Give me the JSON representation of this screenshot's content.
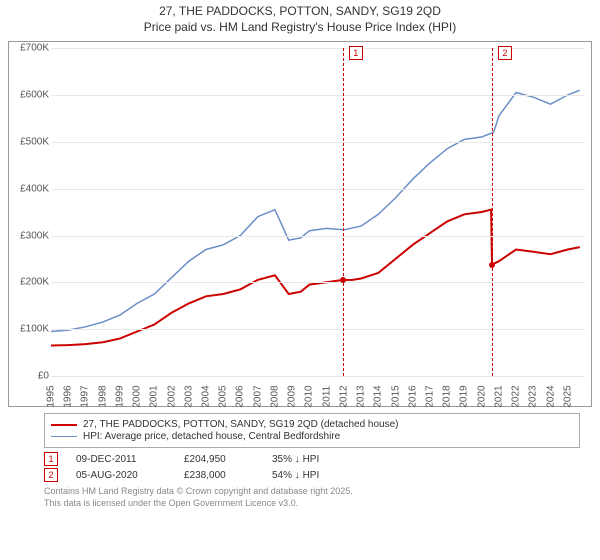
{
  "title": {
    "line1": "27, THE PADDOCKS, POTTON, SANDY, SG19 2QD",
    "line2": "Price paid vs. HM Land Registry's House Price Index (HPI)",
    "fontsize": 12
  },
  "chart": {
    "type": "line",
    "background_color": "#ffffff",
    "grid_color": "#e8e8e8",
    "axis_color": "#999999",
    "ylim": [
      0,
      700000
    ],
    "yticks": [
      0,
      100000,
      200000,
      300000,
      400000,
      500000,
      600000,
      700000
    ],
    "ytick_labels": [
      "£0",
      "£100K",
      "£200K",
      "£300K",
      "£400K",
      "£500K",
      "£600K",
      "£700K"
    ],
    "xlim": [
      1995,
      2026
    ],
    "xticks": [
      1995,
      1996,
      1997,
      1998,
      1999,
      2000,
      2001,
      2002,
      2003,
      2004,
      2005,
      2006,
      2007,
      2008,
      2009,
      2010,
      2011,
      2012,
      2013,
      2014,
      2015,
      2016,
      2017,
      2018,
      2019,
      2020,
      2021,
      2022,
      2023,
      2024,
      2025
    ],
    "tick_fontsize": 10,
    "series": [
      {
        "id": "property",
        "label": "27, THE PADDOCKS, POTTON, SANDY, SG19 2QD (detached house)",
        "color": "#cc0000",
        "line_width": 2,
        "values": [
          [
            1995,
            65000
          ],
          [
            1996,
            66000
          ],
          [
            1997,
            68000
          ],
          [
            1998,
            72000
          ],
          [
            1999,
            80000
          ],
          [
            2000,
            95000
          ],
          [
            2001,
            110000
          ],
          [
            2002,
            135000
          ],
          [
            2003,
            155000
          ],
          [
            2004,
            170000
          ],
          [
            2005,
            175000
          ],
          [
            2006,
            185000
          ],
          [
            2007,
            205000
          ],
          [
            2008,
            215000
          ],
          [
            2008.8,
            175000
          ],
          [
            2009.5,
            180000
          ],
          [
            2010,
            195000
          ],
          [
            2011,
            200000
          ],
          [
            2011.9,
            204950
          ],
          [
            2012.5,
            205000
          ],
          [
            2013,
            208000
          ],
          [
            2014,
            220000
          ],
          [
            2015,
            250000
          ],
          [
            2016,
            280000
          ],
          [
            2017,
            305000
          ],
          [
            2018,
            330000
          ],
          [
            2019,
            345000
          ],
          [
            2020,
            350000
          ],
          [
            2020.55,
            355000
          ],
          [
            2020.6,
            238000
          ],
          [
            2021,
            245000
          ],
          [
            2022,
            270000
          ],
          [
            2023,
            265000
          ],
          [
            2024,
            260000
          ],
          [
            2025,
            270000
          ],
          [
            2025.7,
            275000
          ]
        ]
      },
      {
        "id": "hpi",
        "label": "HPI: Average price, detached house, Central Bedfordshire",
        "color": "#6a8fc7",
        "line_width": 1.5,
        "values": [
          [
            1995,
            95000
          ],
          [
            1996,
            98000
          ],
          [
            1997,
            105000
          ],
          [
            1998,
            115000
          ],
          [
            1999,
            130000
          ],
          [
            2000,
            155000
          ],
          [
            2001,
            175000
          ],
          [
            2002,
            210000
          ],
          [
            2003,
            245000
          ],
          [
            2004,
            270000
          ],
          [
            2005,
            280000
          ],
          [
            2006,
            300000
          ],
          [
            2007,
            340000
          ],
          [
            2008,
            355000
          ],
          [
            2008.8,
            290000
          ],
          [
            2009.5,
            295000
          ],
          [
            2010,
            310000
          ],
          [
            2011,
            315000
          ],
          [
            2012,
            312000
          ],
          [
            2013,
            320000
          ],
          [
            2014,
            345000
          ],
          [
            2015,
            380000
          ],
          [
            2016,
            420000
          ],
          [
            2017,
            455000
          ],
          [
            2018,
            485000
          ],
          [
            2019,
            505000
          ],
          [
            2020,
            510000
          ],
          [
            2020.7,
            520000
          ],
          [
            2021,
            555000
          ],
          [
            2022,
            605000
          ],
          [
            2023,
            595000
          ],
          [
            2024,
            580000
          ],
          [
            2025,
            600000
          ],
          [
            2025.7,
            610000
          ]
        ]
      }
    ],
    "vertical_markers": [
      {
        "id": 1,
        "label": "1",
        "x": 2011.94,
        "color": "#cc0000"
      },
      {
        "id": 2,
        "label": "2",
        "x": 2020.6,
        "color": "#cc0000"
      }
    ],
    "sale_points": [
      {
        "x": 2011.94,
        "y": 204950,
        "color": "#cc0000"
      },
      {
        "x": 2020.6,
        "y": 238000,
        "color": "#cc0000"
      }
    ]
  },
  "legend": {
    "border_color": "#aaaaaa",
    "fontsize": 10,
    "items": [
      {
        "color": "#cc0000",
        "width": 2,
        "label": "27, THE PADDOCKS, POTTON, SANDY, SG19 2QD (detached house)"
      },
      {
        "color": "#6a8fc7",
        "width": 1.5,
        "label": "HPI: Average price, detached house, Central Bedfordshire"
      }
    ]
  },
  "sales": {
    "arrow": "↓",
    "rows": [
      {
        "marker": "1",
        "marker_color": "#cc0000",
        "date": "09-DEC-2011",
        "price": "£204,950",
        "diff": "35% ↓ HPI"
      },
      {
        "marker": "2",
        "marker_color": "#cc0000",
        "date": "05-AUG-2020",
        "price": "£238,000",
        "diff": "54% ↓ HPI"
      }
    ]
  },
  "footer": {
    "line1": "Contains HM Land Registry data © Crown copyright and database right 2025.",
    "line2": "This data is licensed under the Open Government Licence v3.0.",
    "color": "#888888",
    "fontsize": 9
  }
}
